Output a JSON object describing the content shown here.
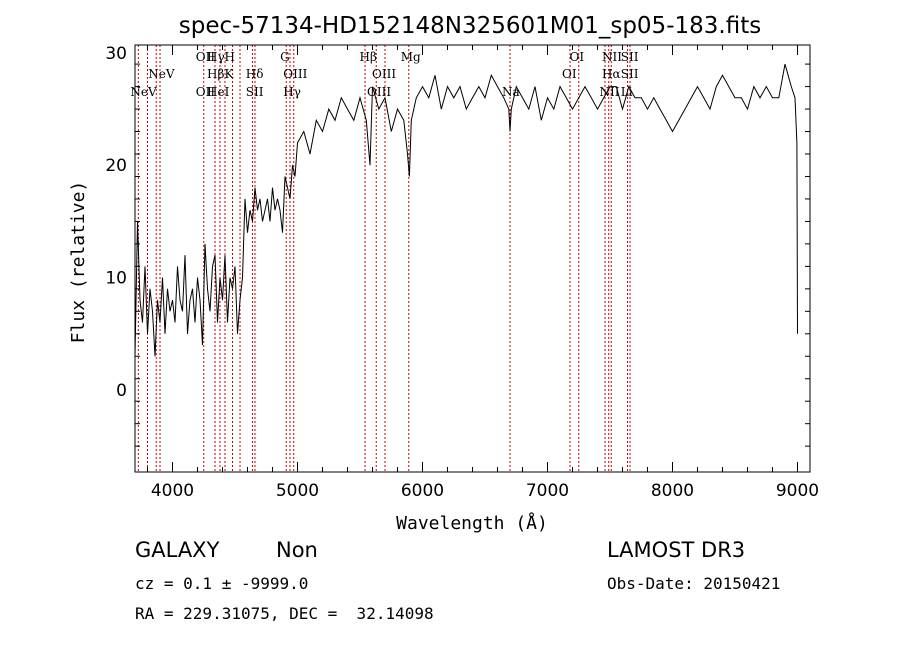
{
  "chart_data": {
    "type": "line",
    "title": "spec-57134-HD152148N325601M01_sp05-183.fits",
    "xlabel": "Wavelength (Å)",
    "ylabel": "Flux (relative)",
    "xlim": [
      3700,
      9100
    ],
    "ylim": [
      -7.3,
      30.7
    ],
    "xticks": [
      4000,
      5000,
      6000,
      7000,
      8000,
      9000
    ],
    "yticks": [
      0,
      10,
      20,
      30
    ],
    "series": [
      {
        "x": [
          3700,
          3720,
          3740,
          3760,
          3780,
          3800,
          3820,
          3840,
          3860,
          3880,
          3900,
          3920,
          3940,
          3960,
          3980,
          4000,
          4020,
          4040,
          4060,
          4080,
          4100,
          4120,
          4140,
          4160,
          4180,
          4200,
          4220,
          4240,
          4260,
          4280,
          4300,
          4320,
          4340,
          4360,
          4380,
          4400,
          4420,
          4440,
          4460,
          4480,
          4500,
          4520,
          4540,
          4560,
          4580,
          4600,
          4620,
          4640,
          4660,
          4680,
          4700,
          4720,
          4740,
          4760,
          4780,
          4800,
          4820,
          4840,
          4860,
          4880,
          4900,
          4920,
          4940,
          4960,
          4980,
          5000,
          5050,
          5100,
          5150,
          5200,
          5250,
          5300,
          5350,
          5400,
          5450,
          5500,
          5550,
          5580,
          5600,
          5650,
          5700,
          5750,
          5800,
          5850,
          5880,
          5895,
          5910,
          5950,
          6000,
          6050,
          6100,
          6150,
          6200,
          6250,
          6300,
          6350,
          6400,
          6450,
          6500,
          6550,
          6600,
          6650,
          6690,
          6700,
          6710,
          6750,
          6800,
          6850,
          6900,
          6950,
          7000,
          7050,
          7100,
          7150,
          7200,
          7250,
          7300,
          7350,
          7400,
          7450,
          7500,
          7550,
          7600,
          7650,
          7700,
          7750,
          7800,
          7850,
          7900,
          7950,
          8000,
          8050,
          8100,
          8150,
          8200,
          8250,
          8300,
          8350,
          8400,
          8450,
          8500,
          8550,
          8600,
          8650,
          8700,
          8750,
          8800,
          8850,
          8900,
          8950,
          8980,
          8995,
          9000
        ],
        "y": [
          3,
          15,
          8,
          6,
          11,
          5,
          9,
          7,
          3,
          8,
          6,
          10,
          5,
          9,
          7,
          8,
          6,
          11,
          8,
          7,
          12,
          5,
          8,
          9,
          6,
          10,
          8,
          4,
          13,
          9,
          7,
          11,
          12,
          6,
          10,
          8,
          12,
          6,
          10,
          9,
          11,
          5,
          8,
          10,
          17,
          14,
          16,
          15,
          18,
          16,
          17,
          15,
          16,
          17,
          15,
          18,
          16,
          17,
          16,
          14,
          19,
          18,
          17,
          20,
          19,
          22,
          23,
          21,
          24,
          23,
          25,
          24,
          26,
          25,
          24,
          26,
          24,
          20,
          27,
          25,
          26,
          23,
          25,
          24,
          21,
          19,
          24,
          26,
          27,
          26,
          28,
          25,
          27,
          26,
          27,
          25,
          26,
          27,
          26,
          28,
          27,
          26,
          25,
          23,
          25,
          27,
          26,
          25,
          27,
          24,
          26,
          25,
          27,
          26,
          25,
          26,
          27,
          26,
          25,
          26,
          27,
          27,
          25,
          27,
          26,
          26,
          25,
          26,
          25,
          24,
          23,
          24,
          25,
          26,
          27,
          26,
          25,
          27,
          28,
          27,
          26,
          26,
          25,
          27,
          26,
          27,
          26,
          26,
          29,
          27,
          26,
          22,
          5
        ]
      }
    ],
    "lines": [
      {
        "wavelength": 3727,
        "label": "NeV",
        "row": 2
      },
      {
        "wavelength": 3870,
        "label": "NeV",
        "row": 1
      },
      {
        "wavelength": 4250,
        "label": "OII",
        "row": 0
      },
      {
        "wavelength": 4250,
        "label": "OII",
        "row": 2
      },
      {
        "wavelength": 4340,
        "label": "Hγ",
        "row": 0
      },
      {
        "wavelength": 4340,
        "label": "Hβ",
        "row": 1
      },
      {
        "wavelength": 4340,
        "label": "HeI",
        "row": 2
      },
      {
        "wavelength": 4480,
        "label": "H",
        "row": 0
      },
      {
        "wavelength": 4480,
        "label": "K",
        "row": 1
      },
      {
        "wavelength": 4650,
        "label": "Hδ",
        "row": 1
      },
      {
        "wavelength": 4650,
        "label": "SII",
        "row": 2
      },
      {
        "wavelength": 4925,
        "label": "G",
        "row": 0
      },
      {
        "wavelength": 4950,
        "label": "OIII",
        "row": 1
      },
      {
        "wavelength": 4950,
        "label": "Hγ",
        "row": 2
      },
      {
        "wavelength": 5560,
        "label": "Hβ",
        "row": 0
      },
      {
        "wavelength": 5660,
        "label": "OIII",
        "row": 1
      },
      {
        "wavelength": 5620,
        "label": "OIII",
        "row": 2
      },
      {
        "wavelength": 5890,
        "label": "Mg",
        "row": 0
      },
      {
        "wavelength": 6700,
        "label": "Na",
        "row": 2
      },
      {
        "wavelength": 7240,
        "label": "OI",
        "row": 0
      },
      {
        "wavelength": 7180,
        "label": "OI",
        "row": 1
      },
      {
        "wavelength": 7500,
        "label": "NII",
        "row": 0
      },
      {
        "wavelength": 7500,
        "label": "Hα",
        "row": 1
      },
      {
        "wavelength": 7480,
        "label": "NII",
        "row": 2
      },
      {
        "wavelength": 7650,
        "label": "SII",
        "row": 0
      },
      {
        "wavelength": 7650,
        "label": "SII",
        "row": 1
      },
      {
        "wavelength": 7650,
        "label": "Li",
        "row": 2
      }
    ],
    "line_positions": [
      3727,
      3800,
      3870,
      3900,
      4250,
      4340,
      4380,
      4420,
      4480,
      4540,
      4640,
      4660,
      4910,
      4940,
      4970,
      5540,
      5630,
      5700,
      5890,
      6700,
      7180,
      7250,
      7460,
      7490,
      7510,
      7640,
      7660
    ],
    "colors": {
      "spectrum": "#000000",
      "lines": "#cc0000",
      "axes": "#000000"
    }
  },
  "info": {
    "class": "GALAXY",
    "subclass": "Non",
    "survey": "LAMOST DR3",
    "cz": "cz = 0.1 ± -9999.0",
    "obs_date": "Obs-Date: 20150421",
    "coords": "RA = 229.31075, DEC =  32.14098"
  }
}
